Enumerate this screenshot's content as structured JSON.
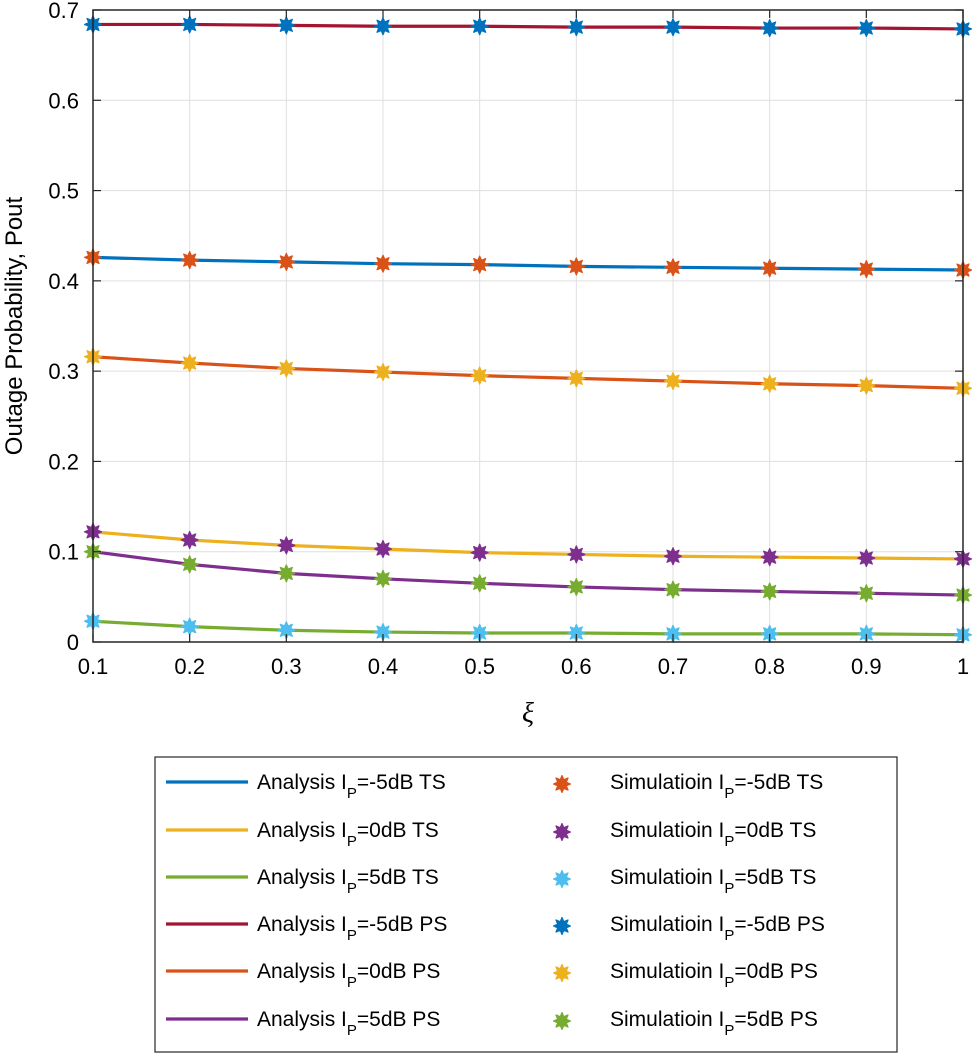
{
  "chart_data": {
    "type": "line",
    "title": "",
    "xlabel": "ξ",
    "ylabel": "Outage Probability, Pout",
    "xlim": [
      0.1,
      1
    ],
    "ylim": [
      0,
      0.7
    ],
    "grid": true,
    "legend_placement": "below",
    "x": [
      0.1,
      0.2,
      0.3,
      0.4,
      0.5,
      0.6,
      0.7,
      0.8,
      0.9,
      1.0
    ],
    "x_tick_labels": [
      "0.1",
      "0.2",
      "0.3",
      "0.4",
      "0.5",
      "0.6",
      "0.7",
      "0.8",
      "0.9",
      "1"
    ],
    "y_tick_labels": [
      "0",
      "0.1",
      "0.2",
      "0.3",
      "0.4",
      "0.5",
      "0.6",
      "0.7"
    ],
    "y_ticks": [
      0,
      0.1,
      0.2,
      0.3,
      0.4,
      0.5,
      0.6,
      0.7
    ],
    "series": [
      {
        "id": "ana-m5-ts",
        "kind": "line",
        "label_main": "Analysis  I",
        "label_sub": "P",
        "label_rest": "=-5dB  TS",
        "color": "#0072BD",
        "values": [
          0.426,
          0.423,
          0.421,
          0.419,
          0.418,
          0.416,
          0.415,
          0.414,
          0.413,
          0.412
        ]
      },
      {
        "id": "ana-0-ts",
        "kind": "line",
        "label_main": "Analysis  I",
        "label_sub": "P",
        "label_rest": "=0dB  TS",
        "color": "#EDB120",
        "values": [
          0.122,
          0.113,
          0.107,
          0.103,
          0.099,
          0.097,
          0.095,
          0.094,
          0.093,
          0.092
        ]
      },
      {
        "id": "ana-5-ts",
        "kind": "line",
        "label_main": "Analysis  I",
        "label_sub": "P",
        "label_rest": "=5dB  TS",
        "color": "#77AC30",
        "values": [
          0.023,
          0.017,
          0.013,
          0.011,
          0.01,
          0.01,
          0.009,
          0.009,
          0.009,
          0.008
        ]
      },
      {
        "id": "ana-m5-ps",
        "kind": "line",
        "label_main": "Analysis  I",
        "label_sub": "P",
        "label_rest": "=-5dB  PS",
        "color": "#A2142F",
        "values": [
          0.684,
          0.684,
          0.683,
          0.682,
          0.682,
          0.681,
          0.681,
          0.68,
          0.68,
          0.679
        ]
      },
      {
        "id": "ana-0-ps",
        "kind": "line",
        "label_main": "Analysis I",
        "label_sub": "P",
        "label_rest": "=0dB  PS",
        "color": "#D95319",
        "values": [
          0.316,
          0.309,
          0.303,
          0.299,
          0.295,
          0.292,
          0.289,
          0.286,
          0.284,
          0.281
        ]
      },
      {
        "id": "ana-5-ps",
        "kind": "line",
        "label_main": "Analysis I",
        "label_sub": "P",
        "label_rest": "=5dB  PS",
        "color": "#7E2F8E",
        "values": [
          0.1,
          0.086,
          0.076,
          0.07,
          0.065,
          0.061,
          0.058,
          0.056,
          0.054,
          0.052
        ]
      },
      {
        "id": "sim-m5-ts",
        "kind": "marker",
        "label_main": "Simulatioin  I",
        "label_sub": "P",
        "label_rest": "=-5dB  TS",
        "color": "#D95319",
        "values": [
          0.426,
          0.423,
          0.421,
          0.419,
          0.418,
          0.416,
          0.415,
          0.414,
          0.413,
          0.412
        ]
      },
      {
        "id": "sim-0-ts",
        "kind": "marker",
        "label_main": "Simulatioin  I",
        "label_sub": "P",
        "label_rest": "=0dB  TS",
        "color": "#7E2F8E",
        "values": [
          0.122,
          0.113,
          0.107,
          0.103,
          0.099,
          0.097,
          0.095,
          0.094,
          0.093,
          0.092
        ]
      },
      {
        "id": "sim-5-ts",
        "kind": "marker",
        "label_main": "Simulatioin  I",
        "label_sub": "P",
        "label_rest": "=5dB  TS",
        "color": "#4DBEEE",
        "values": [
          0.023,
          0.017,
          0.013,
          0.011,
          0.01,
          0.01,
          0.009,
          0.009,
          0.009,
          0.008
        ]
      },
      {
        "id": "sim-m5-ps",
        "kind": "marker",
        "label_main": "Simulatioin  I",
        "label_sub": "P",
        "label_rest": "=-5dB  PS",
        "color": "#0072BD",
        "values": [
          0.684,
          0.684,
          0.683,
          0.682,
          0.682,
          0.681,
          0.681,
          0.68,
          0.68,
          0.679
        ]
      },
      {
        "id": "sim-0-ps",
        "kind": "marker",
        "label_main": "Simulatioin I",
        "label_sub": "P",
        "label_rest": "=0dB  PS",
        "color": "#EDB120",
        "values": [
          0.316,
          0.309,
          0.303,
          0.299,
          0.295,
          0.292,
          0.289,
          0.286,
          0.284,
          0.281
        ]
      },
      {
        "id": "sim-5-ps",
        "kind": "marker",
        "label_main": "Simulatioin  I",
        "label_sub": "P",
        "label_rest": "=5dB  PS",
        "color": "#77AC30",
        "values": [
          0.1,
          0.086,
          0.076,
          0.07,
          0.065,
          0.061,
          0.058,
          0.056,
          0.054,
          0.052
        ]
      }
    ]
  }
}
